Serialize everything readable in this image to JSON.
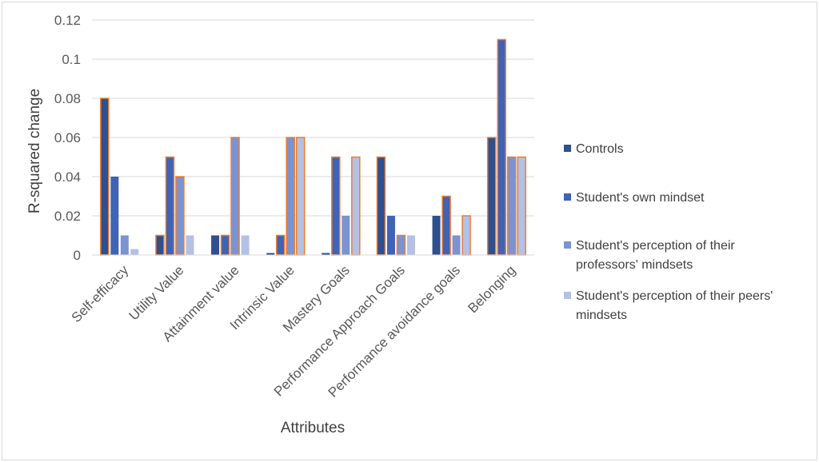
{
  "chart_data": {
    "type": "bar",
    "title": "",
    "xlabel": "Attributes",
    "ylabel": "R-squared change",
    "ylim": [
      0,
      0.12
    ],
    "yticks": [
      "0",
      "0.02",
      "0.04",
      "0.06",
      "0.08",
      "0.1",
      "0.12"
    ],
    "grid": true,
    "legend_position": "right",
    "categories": [
      "Self-efficacy",
      "Utility Value",
      "Attainment value",
      "Intrinsic Value",
      "Mastery Goals",
      "Performance Approach Goals",
      "Performance avoidance goals",
      "Belonging"
    ],
    "series": [
      {
        "name": "Controls",
        "legend_lines": [
          "Controls"
        ],
        "color": "#2f4f8f",
        "values": [
          0.08,
          0.01,
          0.01,
          0.001,
          0.001,
          0.05,
          0.02,
          0.06
        ]
      },
      {
        "name": "Student's own mindset",
        "legend_lines": [
          "Student's own mindset"
        ],
        "color": "#3f63b5",
        "values": [
          0.04,
          0.05,
          0.01,
          0.01,
          0.05,
          0.02,
          0.03,
          0.11
        ]
      },
      {
        "name": "Student's perception of their professors' mindsets",
        "legend_lines": [
          "Student's perception of their",
          "professors' mindsets"
        ],
        "color": "#7b93d1",
        "values": [
          0.01,
          0.04,
          0.06,
          0.06,
          0.02,
          0.01,
          0.01,
          0.05
        ]
      },
      {
        "name": "Student's perception of their peers' mindsets",
        "legend_lines": [
          "Student's perception of their peers'",
          "mindsets"
        ],
        "color": "#b4c1e4",
        "values": [
          0.003,
          0.01,
          0.01,
          0.06,
          0.05,
          0.01,
          0.02,
          0.05
        ]
      }
    ],
    "highlight_outline_color": "#ed7d31",
    "highlighted": [
      [
        0,
        0
      ],
      [
        1,
        0
      ],
      [
        1,
        1
      ],
      [
        1,
        2
      ],
      [
        2,
        1
      ],
      [
        2,
        2
      ],
      [
        3,
        1
      ],
      [
        3,
        2
      ],
      [
        3,
        3
      ],
      [
        4,
        1
      ],
      [
        4,
        3
      ],
      [
        5,
        0
      ],
      [
        5,
        2
      ],
      [
        6,
        1
      ],
      [
        6,
        3
      ],
      [
        7,
        0
      ],
      [
        7,
        1
      ],
      [
        7,
        2
      ],
      [
        7,
        3
      ]
    ]
  }
}
